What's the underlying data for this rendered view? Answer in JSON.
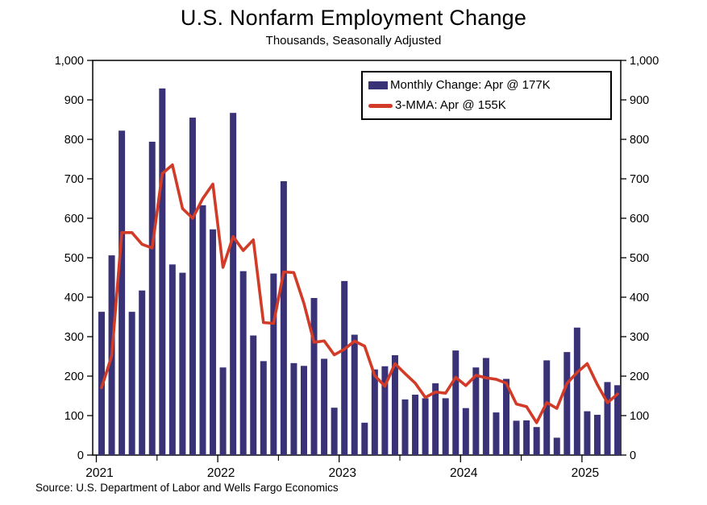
{
  "header": {
    "title": "U.S. Nonfarm Employment Change",
    "subtitle": "Thousands, Seasonally Adjusted"
  },
  "legend": [
    {
      "label": "Monthly Change: Apr @ 177K",
      "type": "bar",
      "color": "#3A3276"
    },
    {
      "label": "3-MMA: Apr @ 155K",
      "type": "line",
      "color": "#D13B27"
    }
  ],
  "source_note": "Source: U.S. Department of Labor and Wells Fargo Economics",
  "chart_data": {
    "type": "bar",
    "title": "U.S. Nonfarm Employment Change",
    "subtitle": "Thousands, Seasonally Adjusted",
    "unit": "thousands of jobs",
    "ylim": [
      0,
      1000
    ],
    "ytick_step": 100,
    "y_tick_labels": [
      "0",
      "100",
      "200",
      "300",
      "400",
      "500",
      "600",
      "700",
      "800",
      "900",
      "1,000"
    ],
    "grid": false,
    "legend_position": "top-right-inside",
    "x_year_labels": [
      "2021",
      "2022",
      "2023",
      "2024",
      "2025"
    ],
    "categories": [
      "2021-01",
      "2021-02",
      "2021-03",
      "2021-04",
      "2021-05",
      "2021-06",
      "2021-07",
      "2021-08",
      "2021-09",
      "2021-10",
      "2021-11",
      "2021-12",
      "2022-01",
      "2022-02",
      "2022-03",
      "2022-04",
      "2022-05",
      "2022-06",
      "2022-07",
      "2022-08",
      "2022-09",
      "2022-10",
      "2022-11",
      "2022-12",
      "2023-01",
      "2023-02",
      "2023-03",
      "2023-04",
      "2023-05",
      "2023-06",
      "2023-07",
      "2023-08",
      "2023-09",
      "2023-10",
      "2023-11",
      "2023-12",
      "2024-01",
      "2024-02",
      "2024-03",
      "2024-04",
      "2024-05",
      "2024-06",
      "2024-07",
      "2024-08",
      "2024-09",
      "2024-10",
      "2024-11",
      "2024-12",
      "2025-01",
      "2025-02",
      "2025-03",
      "2025-04"
    ],
    "series": [
      {
        "name": "Monthly Change",
        "type": "bar",
        "color": "#3A3276",
        "values": [
          363,
          506,
          822,
          363,
          417,
          794,
          929,
          483,
          462,
          855,
          633,
          572,
          222,
          867,
          466,
          303,
          238,
          460,
          694,
          233,
          226,
          398,
          244,
          120,
          441,
          305,
          82,
          217,
          225,
          253,
          141,
          153,
          144,
          182,
          144,
          265,
          119,
          222,
          246,
          108,
          193,
          87,
          88,
          71,
          240,
          44,
          261,
          323,
          111,
          102,
          185,
          177
        ]
      },
      {
        "name": "3-MMA",
        "type": "line",
        "color": "#D13B27",
        "values": [
          170.7,
          251.3,
          563.7,
          563.7,
          534.0,
          524.7,
          713.3,
          735.3,
          624.7,
          600.0,
          650.0,
          686.7,
          475.7,
          553.7,
          518.3,
          545.3,
          335.7,
          333.7,
          464.0,
          462.3,
          384.3,
          285.7,
          289.3,
          254.0,
          268.3,
          288.7,
          276.0,
          201.3,
          174.7,
          231.7,
          206.3,
          182.3,
          146.0,
          159.7,
          156.7,
          197.0,
          176.0,
          202.0,
          195.7,
          192.0,
          182.3,
          129.3,
          122.7,
          82.0,
          133.0,
          118.3,
          181.7,
          209.3,
          231.7,
          178.7,
          132.7,
          154.7
        ]
      }
    ]
  }
}
